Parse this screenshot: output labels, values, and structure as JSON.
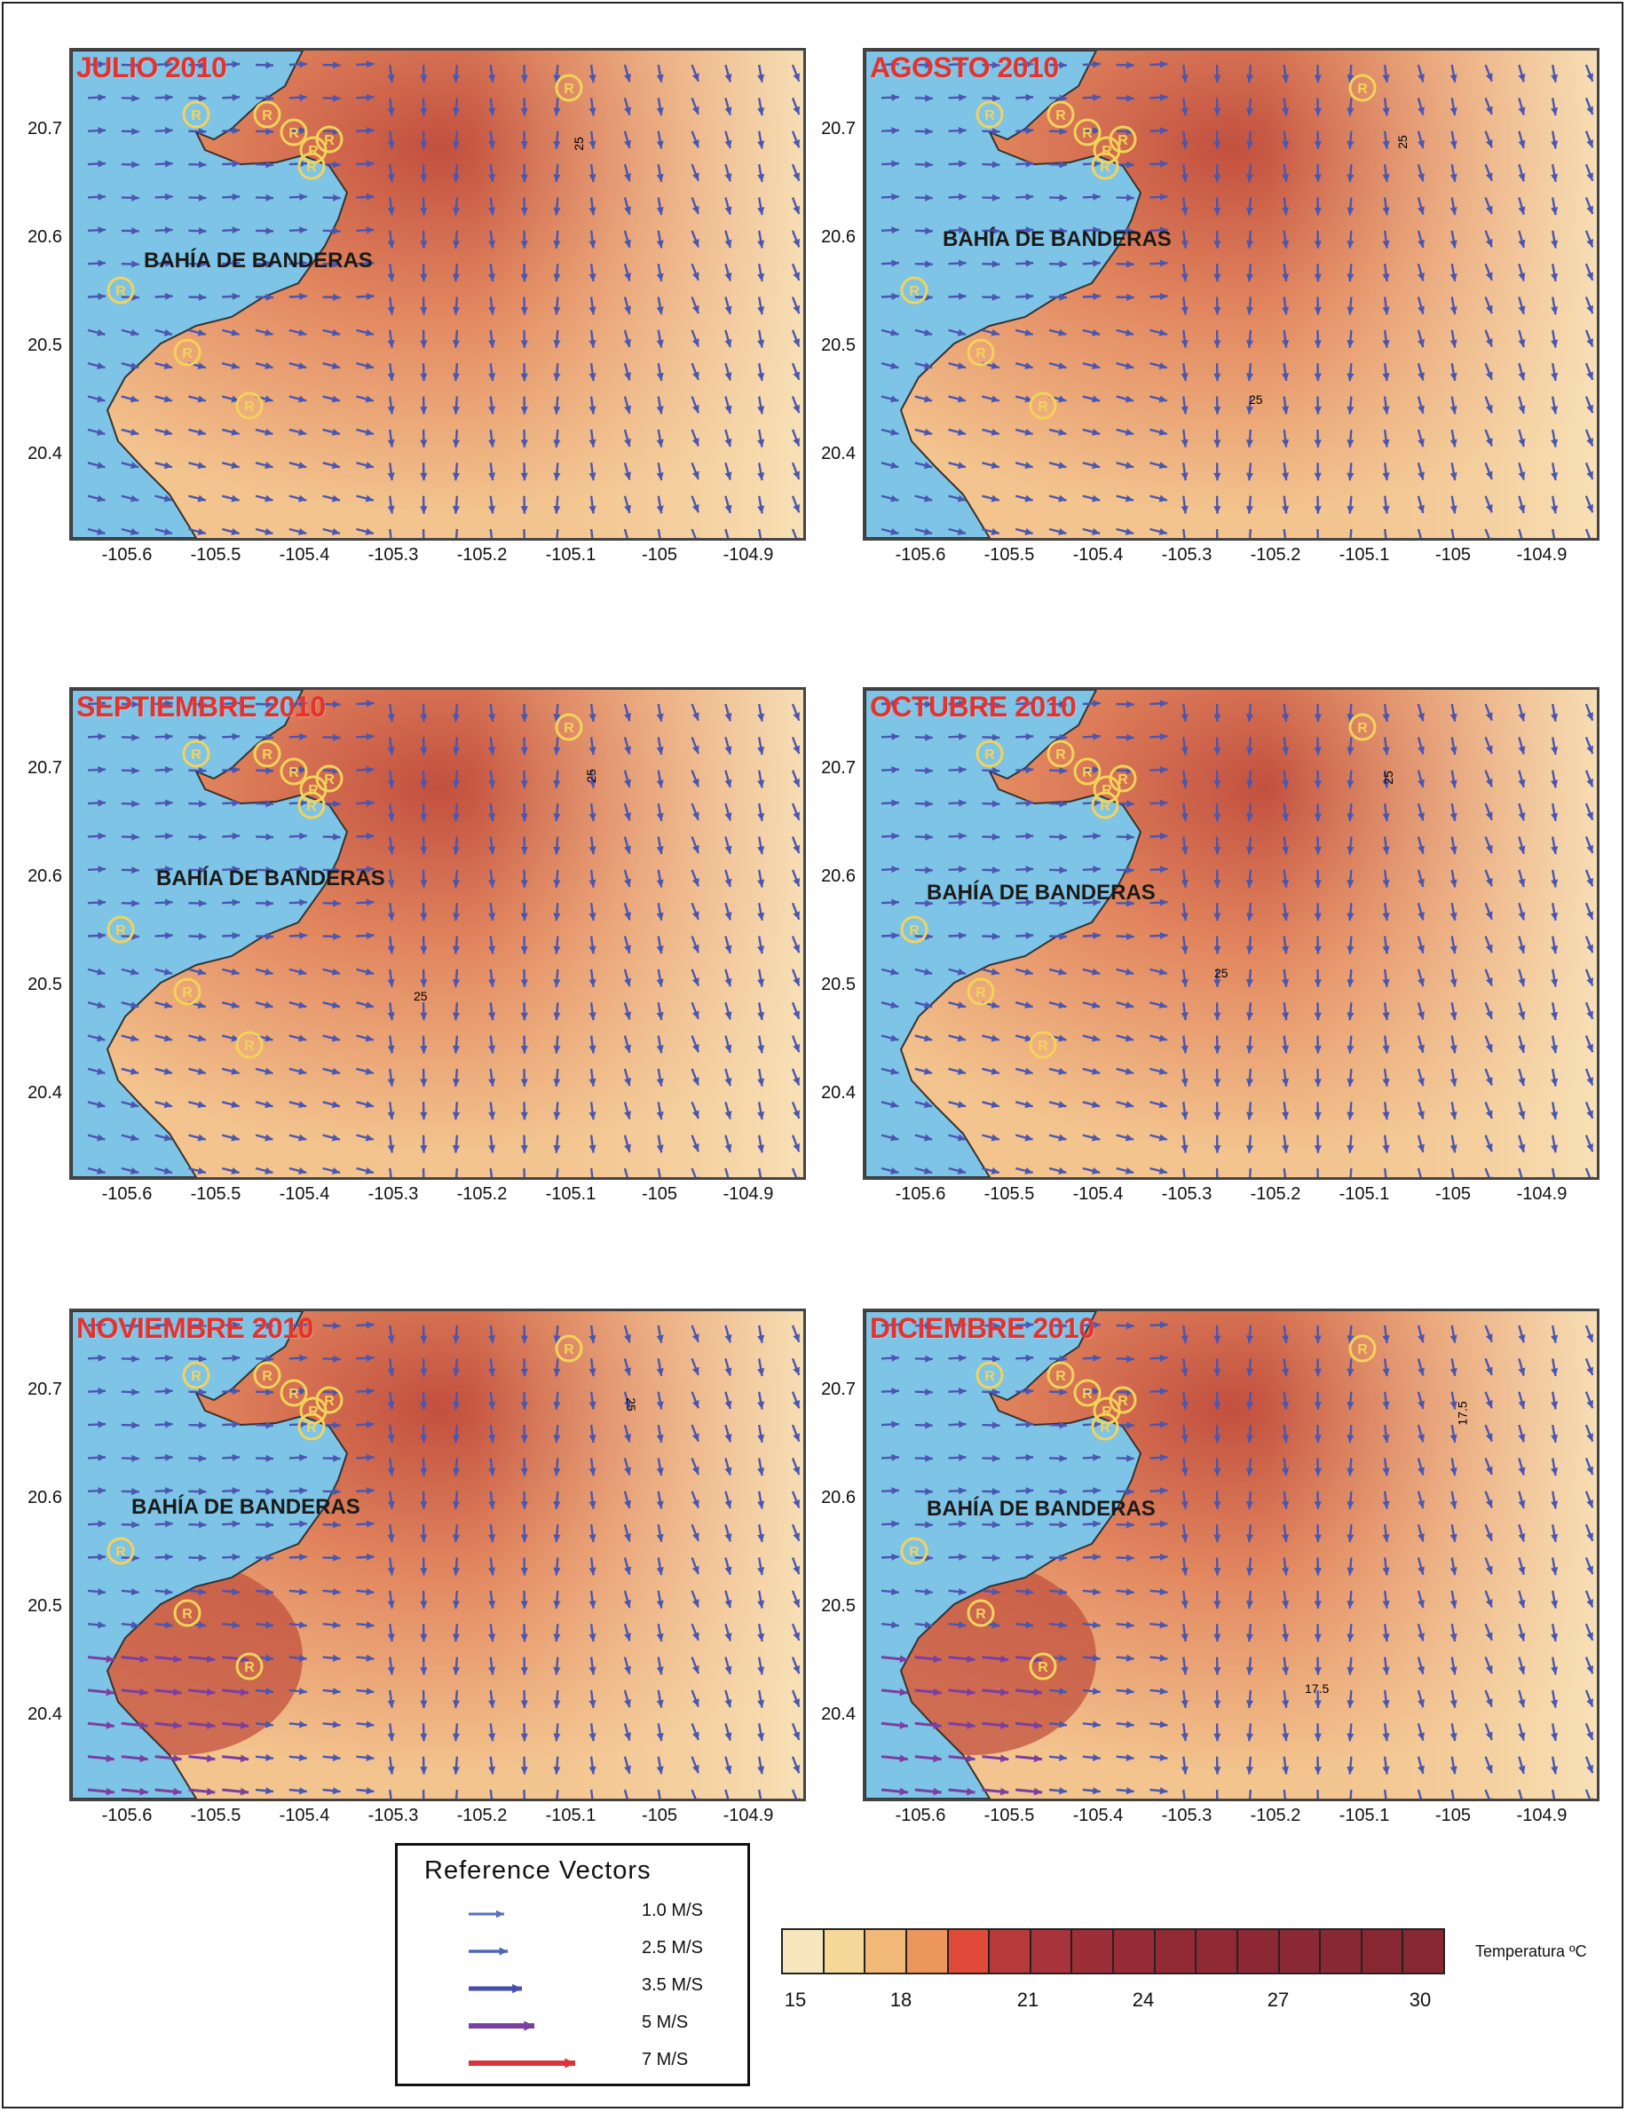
{
  "panels": [
    {
      "title": "JULIO 2010",
      "bay_label": "BAHÍA DE BANDERAS",
      "contour_labels": [
        "25"
      ]
    },
    {
      "title": "AGOSTO 2010",
      "bay_label": "BAHÍA DE BANDERAS",
      "contour_labels": [
        "25",
        "25"
      ]
    },
    {
      "title": "SEPTIEMBRE 2010",
      "bay_label": "BAHÍA DE BANDERAS",
      "contour_labels": [
        "25",
        "25"
      ]
    },
    {
      "title": "OCTUBRE 2010",
      "bay_label": "BAHÍA DE BANDERAS",
      "contour_labels": [
        "25",
        "25"
      ]
    },
    {
      "title": "NOVIEMBRE 2010",
      "bay_label": "BAHÍA DE BANDERAS",
      "contour_labels": [
        "25"
      ]
    },
    {
      "title": "DICIEMBRE 2010",
      "bay_label": "BAHÍA DE BANDERAS",
      "contour_labels": [
        "17.5",
        "17.5"
      ]
    }
  ],
  "axes": {
    "y_ticks": [
      "20.7",
      "20.6",
      "20.5",
      "20.4"
    ],
    "x_ticks": [
      "-105.6",
      "-105.5",
      "-105.4",
      "-105.3",
      "-105.2",
      "-105.1",
      "-105",
      "-104.9"
    ]
  },
  "station_marker_letter": "R",
  "legend": {
    "title": "Reference Vectors",
    "items": [
      {
        "label": "1.0 M/S",
        "color": "#5a6fc0"
      },
      {
        "label": "2.5 M/S",
        "color": "#4e66b8"
      },
      {
        "label": "3.5 M/S",
        "color": "#4450a8"
      },
      {
        "label": "5 M/S",
        "color": "#7a3fa0"
      },
      {
        "label": "7 M/S",
        "color": "#d9343a"
      }
    ]
  },
  "colorbar": {
    "title": "Temperatura ºC",
    "ticks": [
      "15",
      "18",
      "21",
      "24",
      "27",
      "30"
    ],
    "colors": [
      "#f6e5bd",
      "#f5d79a",
      "#f2b877",
      "#ec955d",
      "#e04a38",
      "#b8393a",
      "#a8333a",
      "#9c2e38",
      "#962b36",
      "#922a35",
      "#8f2934",
      "#8c2833",
      "#8a2833",
      "#882833",
      "#872732",
      "#862732"
    ]
  },
  "colors": {
    "sea": "#7ec4e6",
    "warm": "#c2503f",
    "mid": "#e2875f",
    "cool": "#f3c48e",
    "coolest": "#f8e4bb",
    "arrow": "#4a56b0",
    "strong_arrow": "#7a3fa0",
    "fast_arrow": "#d9343a",
    "marker": "#f3d35a"
  }
}
